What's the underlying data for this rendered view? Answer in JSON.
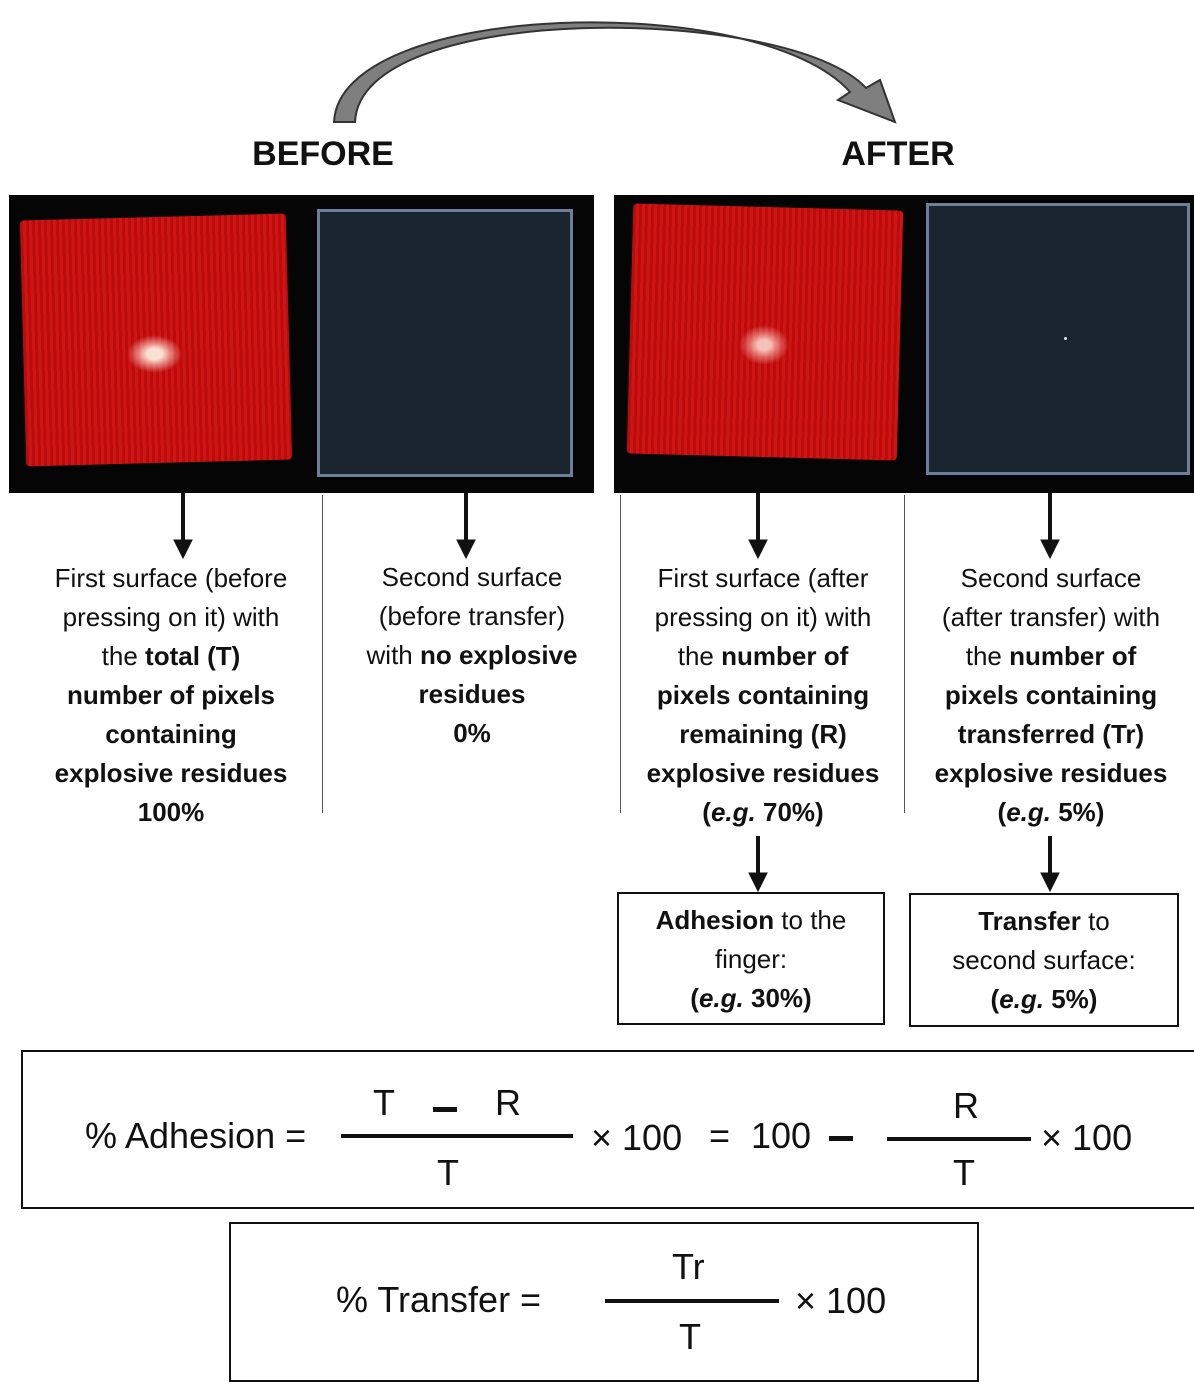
{
  "headings": {
    "before": "BEFORE",
    "after": "AFTER"
  },
  "photos": {
    "before": {
      "first": "red-fabric-with-residues",
      "second": "dark-surface-clean"
    },
    "after": {
      "first": "red-fabric-with-remaining-residues",
      "second": "dark-surface-with-transferred-residues"
    }
  },
  "descriptions": {
    "before_first": {
      "l1": "First surface (before",
      "l2": "pressing on it) with",
      "l3_pre": "the ",
      "l3_bold": "total (T)",
      "l4": "number of pixels",
      "l5": "containing",
      "l6": "explosive residues",
      "l7": "100%"
    },
    "before_second": {
      "l1": "Second surface",
      "l2": "(before transfer)",
      "l3_pre": "with ",
      "l3_bold": "no explosive",
      "l4": "residues",
      "l5": "0%"
    },
    "after_first": {
      "l1": "First surface (after",
      "l2": "pressing on it) with",
      "l3_pre": "the ",
      "l3_bold": "number of",
      "l4": "pixels containing",
      "l5": "remaining (R)",
      "l6": "explosive residues",
      "l7_open": "(",
      "l7_eg": "e.g.",
      "l7_rest": " 70%)"
    },
    "after_second": {
      "l1": "Second surface",
      "l2": "(after transfer) with",
      "l3_pre": "the ",
      "l3_bold": "number of",
      "l4": "pixels containing",
      "l5": "transferred (Tr)",
      "l6": "explosive residues",
      "l7_open": "(",
      "l7_eg": "e.g.",
      "l7_rest": " 5%)"
    }
  },
  "result_boxes": {
    "adhesion": {
      "bold": "Adhesion",
      "rest": " to the",
      "l2": "finger:",
      "l3_open": "(",
      "l3_eg": "e.g.",
      "l3_rest": " 30%)"
    },
    "transfer": {
      "bold": "Transfer",
      "rest": " to",
      "l2": "second surface:",
      "l3_open": "(",
      "l3_eg": "e.g.",
      "l3_rest": " 5%)"
    }
  },
  "formula_adhesion": {
    "lhs": "% Adhesion =",
    "num_a": "T",
    "num_b": "R",
    "den": "T",
    "times1": "× 100",
    "eq": "=",
    "hundred": "100",
    "num2": "R",
    "den2": "T",
    "times2": "× 100"
  },
  "formula_transfer": {
    "lhs": "% Transfer =",
    "num": "Tr",
    "den": "T",
    "times": "×  100"
  }
}
